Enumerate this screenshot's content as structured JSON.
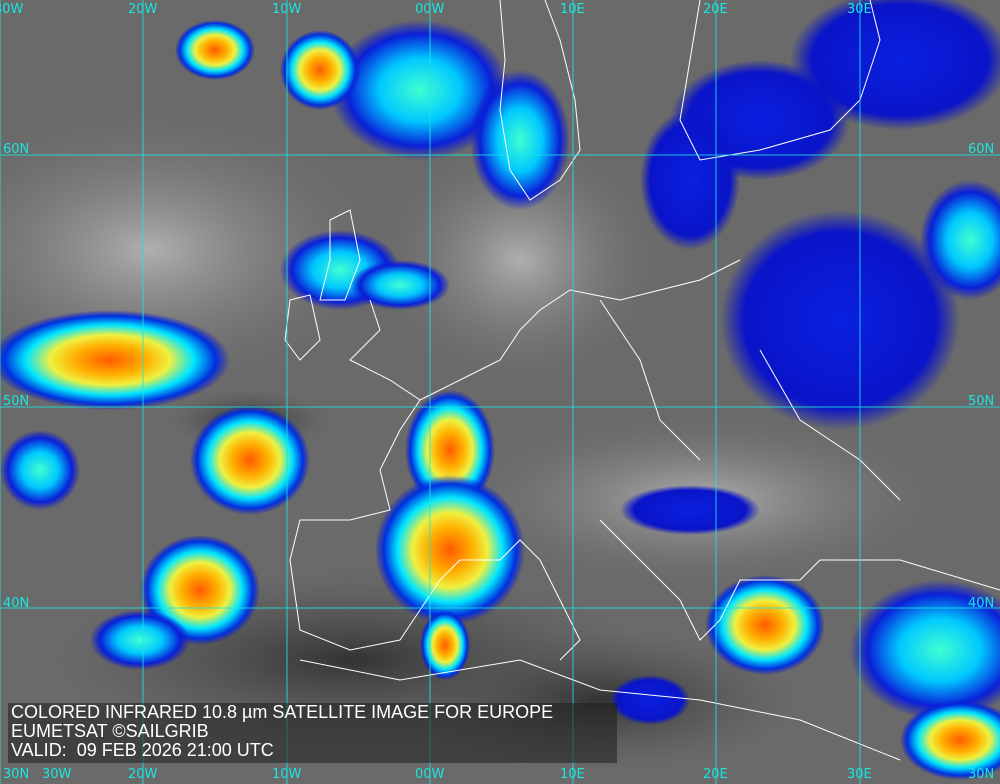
{
  "caption": {
    "line1": "COLORED INFRARED 10.8 µm SATELLITE IMAGE FOR EUROPE",
    "line2": "EUMETSAT ©SAILGRIB",
    "line3": "VALID:  09 FEB 2026 21:00 UTC"
  },
  "grid": {
    "longitudes": [
      "30W",
      "20W",
      "10W",
      "00W",
      "10E",
      "20E",
      "30E"
    ],
    "latitudes": [
      "60N",
      "50N",
      "40N",
      "30N"
    ]
  },
  "colors": {
    "grid": "#19e6e0",
    "coast": "#ffffff",
    "cold_blue": "#0a14d2",
    "cyan": "#00e6ff",
    "yellow": "#f5f53c",
    "orange": "#ff7a00",
    "background_gray": "#6a6a6a"
  }
}
